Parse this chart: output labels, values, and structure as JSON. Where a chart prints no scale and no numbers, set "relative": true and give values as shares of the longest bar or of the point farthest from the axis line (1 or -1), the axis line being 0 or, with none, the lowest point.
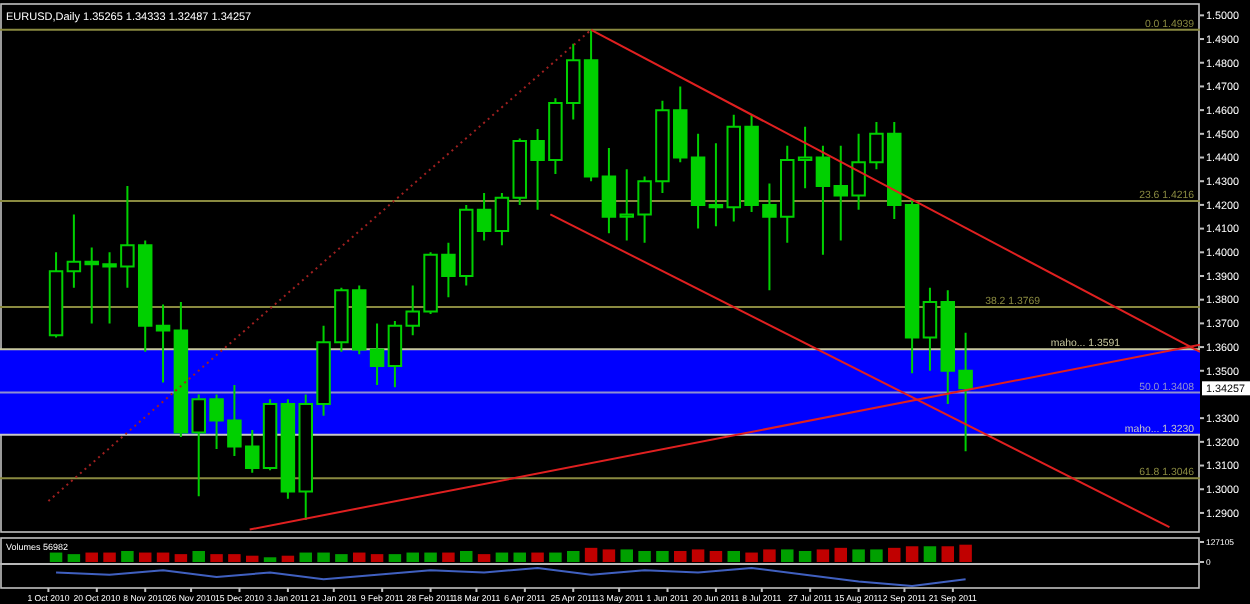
{
  "chart_data": [
    {
      "type": "candlestick",
      "title": "EURUSD,Daily 1.35265 1.34333 1.32487 1.34257",
      "color": "#00d000",
      "x": [
        "2010-10-04",
        "2010-10-11",
        "2010-10-18",
        "2010-10-25",
        "2010-11-01",
        "2010-11-08",
        "2010-11-15",
        "2010-11-22",
        "2010-11-29",
        "2010-12-06",
        "2010-12-13",
        "2010-12-20",
        "2010-12-27",
        "2011-01-03",
        "2011-01-10",
        "2011-01-17",
        "2011-01-24",
        "2011-01-31",
        "2011-02-07",
        "2011-02-14",
        "2011-02-21",
        "2011-02-28",
        "2011-03-07",
        "2011-03-14",
        "2011-03-21",
        "2011-03-28",
        "2011-04-04",
        "2011-04-11",
        "2011-04-18",
        "2011-04-25",
        "2011-05-02",
        "2011-05-09",
        "2011-05-16",
        "2011-05-23",
        "2011-05-30",
        "2011-06-06",
        "2011-06-13",
        "2011-06-20",
        "2011-06-27",
        "2011-07-04",
        "2011-07-11",
        "2011-07-18",
        "2011-07-25",
        "2011-08-01",
        "2011-08-08",
        "2011-08-15",
        "2011-08-22",
        "2011-08-29",
        "2011-09-05",
        "2011-09-12",
        "2011-09-19",
        "2011-09-26"
      ],
      "ohlc": [
        [
          1.365,
          1.4,
          1.364,
          1.392
        ],
        [
          1.392,
          1.416,
          1.385,
          1.396
        ],
        [
          1.396,
          1.402,
          1.37,
          1.395
        ],
        [
          1.395,
          1.4,
          1.37,
          1.394
        ],
        [
          1.394,
          1.428,
          1.385,
          1.403
        ],
        [
          1.403,
          1.405,
          1.358,
          1.369
        ],
        [
          1.369,
          1.378,
          1.345,
          1.367
        ],
        [
          1.367,
          1.379,
          1.322,
          1.324
        ],
        [
          1.324,
          1.34,
          1.297,
          1.338
        ],
        [
          1.338,
          1.34,
          1.317,
          1.329
        ],
        [
          1.329,
          1.344,
          1.314,
          1.318
        ],
        [
          1.318,
          1.325,
          1.307,
          1.309
        ],
        [
          1.309,
          1.338,
          1.308,
          1.336
        ],
        [
          1.336,
          1.338,
          1.296,
          1.299
        ],
        [
          1.299,
          1.34,
          1.287,
          1.336
        ],
        [
          1.336,
          1.369,
          1.331,
          1.362
        ],
        [
          1.362,
          1.385,
          1.358,
          1.384
        ],
        [
          1.384,
          1.386,
          1.357,
          1.359
        ],
        [
          1.359,
          1.37,
          1.344,
          1.352
        ],
        [
          1.352,
          1.371,
          1.343,
          1.369
        ],
        [
          1.369,
          1.386,
          1.365,
          1.375
        ],
        [
          1.375,
          1.4,
          1.374,
          1.399
        ],
        [
          1.399,
          1.404,
          1.381,
          1.39
        ],
        [
          1.39,
          1.42,
          1.386,
          1.418
        ],
        [
          1.418,
          1.425,
          1.405,
          1.409
        ],
        [
          1.409,
          1.425,
          1.403,
          1.423
        ],
        [
          1.423,
          1.448,
          1.42,
          1.447
        ],
        [
          1.447,
          1.452,
          1.418,
          1.439
        ],
        [
          1.439,
          1.465,
          1.433,
          1.463
        ],
        [
          1.463,
          1.488,
          1.456,
          1.481
        ],
        [
          1.481,
          1.4939,
          1.43,
          1.432
        ],
        [
          1.432,
          1.444,
          1.408,
          1.415
        ],
        [
          1.415,
          1.435,
          1.405,
          1.416
        ],
        [
          1.416,
          1.432,
          1.404,
          1.43
        ],
        [
          1.43,
          1.464,
          1.425,
          1.46
        ],
        [
          1.46,
          1.47,
          1.438,
          1.44
        ],
        [
          1.44,
          1.45,
          1.41,
          1.42
        ],
        [
          1.42,
          1.446,
          1.411,
          1.419
        ],
        [
          1.419,
          1.458,
          1.413,
          1.453
        ],
        [
          1.453,
          1.458,
          1.417,
          1.42
        ],
        [
          1.42,
          1.429,
          1.384,
          1.415
        ],
        [
          1.415,
          1.445,
          1.404,
          1.439
        ],
        [
          1.439,
          1.453,
          1.427,
          1.44
        ],
        [
          1.44,
          1.445,
          1.399,
          1.428
        ],
        [
          1.428,
          1.445,
          1.405,
          1.424
        ],
        [
          1.424,
          1.45,
          1.418,
          1.438
        ],
        [
          1.438,
          1.455,
          1.435,
          1.45
        ],
        [
          1.45,
          1.455,
          1.414,
          1.42
        ],
        [
          1.42,
          1.422,
          1.349,
          1.364
        ],
        [
          1.364,
          1.385,
          1.35,
          1.379
        ],
        [
          1.379,
          1.384,
          1.336,
          1.35
        ],
        [
          1.35,
          1.366,
          1.316,
          1.3426
        ]
      ],
      "xlim": [
        "2010-09-12",
        "2011-12-27"
      ],
      "ylim": [
        1.2828,
        1.5031
      ],
      "yticks": [
        {
          "value": 1.29,
          "label": "1.2900"
        },
        {
          "value": 1.3,
          "label": "1.3000"
        },
        {
          "value": 1.31,
          "label": "1.3100"
        },
        {
          "value": 1.32,
          "label": "1.3200"
        },
        {
          "value": 1.33,
          "label": "1.3300"
        },
        {
          "value": 1.35,
          "label": "1.3500"
        },
        {
          "value": 1.36,
          "label": "1.3600"
        },
        {
          "value": 1.37,
          "label": "1.3700"
        },
        {
          "value": 1.38,
          "label": "1.3800"
        },
        {
          "value": 1.39,
          "label": "1.3900"
        },
        {
          "value": 1.4,
          "label": "1.4000"
        },
        {
          "value": 1.41,
          "label": "1.4100"
        },
        {
          "value": 1.42,
          "label": "1.4200"
        },
        {
          "value": 1.43,
          "label": "1.4300"
        },
        {
          "value": 1.44,
          "label": "1.4400"
        },
        {
          "value": 1.45,
          "label": "1.4500"
        },
        {
          "value": 1.46,
          "label": "1.4600"
        },
        {
          "value": 1.47,
          "label": "1.4700"
        },
        {
          "value": 1.48,
          "label": "1.4800"
        },
        {
          "value": 1.49,
          "label": "1.4900"
        },
        {
          "value": 1.5,
          "label": "1.5000"
        }
      ],
      "tick_labels": "y",
      "bands": [
        {
          "axis": "y",
          "from": 1.323,
          "to": 1.3591,
          "color": "#0000ff"
        }
      ],
      "ref_lines": [
        {
          "axis": "y",
          "value": 1.4939,
          "label": "0.0 1.4939",
          "color": "#8a8a40"
        },
        {
          "axis": "y",
          "value": 1.4216,
          "label": "23.6 1.4216",
          "color": "#8a8a40"
        },
        {
          "axis": "y",
          "value": 1.3769,
          "label": "38.2 1.3769",
          "color": "#8a8a40"
        },
        {
          "axis": "y",
          "value": 1.3591,
          "label": "maho... 1.3591",
          "color": "#c8c8a0"
        },
        {
          "axis": "y",
          "value": 1.3408,
          "label": "50.0 1.3408",
          "color": "#9090d0"
        },
        {
          "axis": "y",
          "value": 1.323,
          "label": "maho... 1.3230",
          "color": "#c8c8c8"
        },
        {
          "axis": "y",
          "value": 1.3046,
          "label": "61.8 1.3046",
          "color": "#8a8a40"
        }
      ],
      "series": [
        {
          "type": "line",
          "color": "#e02020",
          "x": [
            "2011-05-02",
            "2011-12-27"
          ],
          "values": [
            1.4939,
            1.358
          ]
        },
        {
          "type": "line",
          "color": "#e02020",
          "x": [
            "2011-04-16",
            "2011-12-15"
          ],
          "values": [
            1.416,
            1.284
          ]
        },
        {
          "type": "line",
          "color": "#e02020",
          "x": [
            "2010-12-19",
            "2011-12-27"
          ],
          "values": [
            1.283,
            1.361
          ]
        },
        {
          "type": "line",
          "color": "#a02020",
          "line_style": "dotted",
          "x": [
            "2010-10-01",
            "2011-05-02"
          ],
          "values": [
            1.295,
            1.4939
          ]
        }
      ],
      "annotations": [
        "1.34257"
      ]
    },
    {
      "type": "bar",
      "title": "Volumes 56982",
      "x": [
        "2010-10-04",
        "2010-10-11",
        "2010-10-18",
        "2010-10-25",
        "2010-11-01",
        "2010-11-08",
        "2010-11-15",
        "2010-11-22",
        "2010-11-29",
        "2010-12-06",
        "2010-12-13",
        "2010-12-20",
        "2010-12-27",
        "2011-01-03",
        "2011-01-10",
        "2011-01-17",
        "2011-01-24",
        "2011-01-31",
        "2011-02-07",
        "2011-02-14",
        "2011-02-21",
        "2011-02-28",
        "2011-03-07",
        "2011-03-14",
        "2011-03-21",
        "2011-03-28",
        "2011-04-04",
        "2011-04-11",
        "2011-04-18",
        "2011-04-25",
        "2011-05-02",
        "2011-05-09",
        "2011-05-16",
        "2011-05-23",
        "2011-05-30",
        "2011-06-06",
        "2011-06-13",
        "2011-06-20",
        "2011-06-27",
        "2011-07-04",
        "2011-07-11",
        "2011-07-18",
        "2011-07-25",
        "2011-08-01",
        "2011-08-08",
        "2011-08-15",
        "2011-08-22",
        "2011-08-29",
        "2011-09-05",
        "2011-09-12",
        "2011-09-19",
        "2011-09-26"
      ],
      "values": [
        60000,
        50000,
        60000,
        60000,
        70000,
        60000,
        60000,
        50000,
        70000,
        50000,
        50000,
        40000,
        30000,
        40000,
        60000,
        60000,
        50000,
        60000,
        50000,
        50000,
        60000,
        60000,
        60000,
        70000,
        50000,
        60000,
        60000,
        60000,
        60000,
        70000,
        90000,
        80000,
        80000,
        70000,
        70000,
        70000,
        80000,
        70000,
        70000,
        60000,
        80000,
        80000,
        70000,
        80000,
        90000,
        80000,
        80000,
        90000,
        100000,
        100000,
        100000,
        110000
      ],
      "colors": [
        "#00a000",
        "#00a000",
        "#c00000",
        "#c00000",
        "#00a000",
        "#c00000",
        "#c00000",
        "#c00000",
        "#00a000",
        "#c00000",
        "#c00000",
        "#c00000",
        "#00a000",
        "#c00000",
        "#00a000",
        "#00a000",
        "#00a000",
        "#c00000",
        "#c00000",
        "#00a000",
        "#00a000",
        "#00a000",
        "#c00000",
        "#00a000",
        "#c00000",
        "#00a000",
        "#00a000",
        "#c00000",
        "#00a000",
        "#00a000",
        "#c00000",
        "#c00000",
        "#00a000",
        "#00a000",
        "#00a000",
        "#c00000",
        "#c00000",
        "#c00000",
        "#00a000",
        "#c00000",
        "#c00000",
        "#00a000",
        "#00a000",
        "#c00000",
        "#c00000",
        "#00a000",
        "#00a000",
        "#c00000",
        "#c00000",
        "#00a000",
        "#c00000",
        "#c00000"
      ],
      "xlim": [
        "2010-09-12",
        "2011-12-27"
      ],
      "ylim": [
        0,
        127105
      ],
      "yticks": [
        0,
        127105
      ],
      "tick_labels": "y"
    },
    {
      "type": "line",
      "relative": true,
      "color": "#4060c0",
      "xlim": [
        "2010-09-12",
        "2011-12-27"
      ],
      "x": [
        "2010-10-04",
        "2010-10-25",
        "2010-11-15",
        "2010-12-06",
        "2010-12-27",
        "2011-01-17",
        "2011-02-07",
        "2011-02-28",
        "2011-03-21",
        "2011-04-11",
        "2011-05-02",
        "2011-05-23",
        "2011-06-13",
        "2011-07-04",
        "2011-07-25",
        "2011-08-15",
        "2011-09-05",
        "2011-09-26"
      ],
      "values": [
        0.75,
        0.63,
        0.88,
        0.5,
        0.75,
        0.38,
        0.63,
        0.88,
        0.75,
        1,
        0.63,
        0.88,
        0.75,
        1,
        0.63,
        0.25,
        0,
        0.38
      ],
      "xticks": [
        {
          "value": "2010-10-01",
          "label": "1 Oct 2010"
        },
        {
          "value": "2010-10-20",
          "label": "20 Oct 2010"
        },
        {
          "value": "2010-11-08",
          "label": "8 Nov 2010"
        },
        {
          "value": "2010-11-26",
          "label": "26 Nov 2010"
        },
        {
          "value": "2010-12-15",
          "label": "15 Dec 2010"
        },
        {
          "value": "2011-01-03",
          "label": "3 Jan 2011"
        },
        {
          "value": "2011-01-21",
          "label": "21 Jan 2011"
        },
        {
          "value": "2011-02-09",
          "label": "9 Feb 2011"
        },
        {
          "value": "2011-02-28",
          "label": "28 Feb 2011"
        },
        {
          "value": "2011-03-18",
          "label": "18 Mar 2011"
        },
        {
          "value": "2011-04-06",
          "label": "6 Apr 2011"
        },
        {
          "value": "2011-04-25",
          "label": "25 Apr 2011"
        },
        {
          "value": "2011-05-13",
          "label": "13 May 2011"
        },
        {
          "value": "2011-06-01",
          "label": "1 Jun 2011"
        },
        {
          "value": "2011-06-20",
          "label": "20 Jun 2011"
        },
        {
          "value": "2011-07-08",
          "label": "8 Jul 2011"
        },
        {
          "value": "2011-07-27",
          "label": "27 Jul 2011"
        },
        {
          "value": "2011-08-15",
          "label": "15 Aug 2011"
        },
        {
          "value": "2011-09-02",
          "label": "2 Sep 2011"
        },
        {
          "value": "2011-09-21",
          "label": "21 Sep 2011"
        }
      ],
      "tick_labels": "x"
    }
  ]
}
